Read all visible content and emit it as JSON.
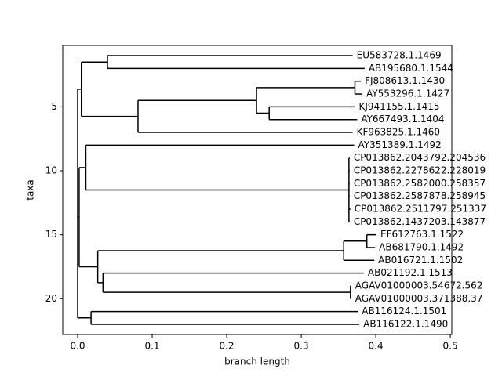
{
  "chart_data": {
    "type": "tree",
    "xlabel": "branch length",
    "ylabel": "taxa",
    "xlim": [
      -0.02,
      0.502
    ],
    "xticks": [
      {
        "value": 0,
        "label": "0.0"
      },
      0.1,
      0.2,
      0.3,
      0.4,
      0.5
    ],
    "ylim": [
      22.8,
      0.2
    ],
    "yticks": [
      5,
      10,
      15,
      20
    ],
    "color": "#000000",
    "tree": {
      "x": 0,
      "children": [
        {
          "x": 0.005,
          "children": [
            {
              "x": 0.04,
              "children": [
                {
                  "x": 0.369,
                  "name": "EU583728.1.1469"
                },
                {
                  "x": 0.385,
                  "name": "AB195680.1.1544"
                }
              ]
            },
            {
              "x": 0.081,
              "children": [
                {
                  "x": 0.24,
                  "children": [
                    {
                      "x": 0.372,
                      "children": [
                        {
                          "x": 0.38,
                          "name": "FJ808613.1.1430"
                        },
                        {
                          "x": 0.382,
                          "name": "AY553296.1.1427"
                        }
                      ]
                    },
                    {
                      "x": 0.257,
                      "children": [
                        {
                          "x": 0.372,
                          "name": "KJ941155.1.1415"
                        },
                        {
                          "x": 0.375,
                          "name": "AY667493.1.1404"
                        }
                      ]
                    }
                  ]
                },
                {
                  "x": 0.369,
                  "name": "KF963825.1.1460"
                }
              ]
            }
          ]
        },
        {
          "x": 0.002,
          "children": [
            {
              "x": 0.011,
              "children": [
                {
                  "x": 0.371,
                  "name": "AY351389.1.1492"
                },
                {
                  "x": 0.364,
                  "children": [
                    {
                      "x": 0.365,
                      "name": "CP013862.2043792.204536"
                    },
                    {
                      "x": 0.365,
                      "name": "CP013862.2278622.228019"
                    },
                    {
                      "x": 0.365,
                      "name": "CP013862.2582000.258357"
                    },
                    {
                      "x": 0.365,
                      "name": "CP013862.2587878.258945"
                    },
                    {
                      "x": 0.366,
                      "name": "CP013862.2511797.251337"
                    },
                    {
                      "x": 0.365,
                      "name": "CP013862.1437203.143877"
                    }
                  ]
                }
              ]
            },
            {
              "x": 0.027,
              "children": [
                {
                  "x": 0.357,
                  "children": [
                    {
                      "x": 0.388,
                      "children": [
                        {
                          "x": 0.401,
                          "name": "EF612763.1.1522"
                        },
                        {
                          "x": 0.399,
                          "name": "AB681790.1.1492"
                        }
                      ]
                    },
                    {
                      "x": 0.398,
                      "name": "AB016721.1.1502"
                    }
                  ]
                },
                {
                  "x": 0.034,
                  "children": [
                    {
                      "x": 0.384,
                      "name": "AB021192.1.1513"
                    },
                    {
                      "x": 0.366,
                      "children": [
                        {
                          "x": 0.367,
                          "name": "AGAV01000003.54672.562"
                        },
                        {
                          "x": 0.367,
                          "name": "AGAV01000003.371388.37"
                        }
                      ]
                    }
                  ]
                }
              ]
            }
          ]
        },
        {
          "x": 0.018,
          "children": [
            {
              "x": 0.376,
              "name": "AB116124.1.1501"
            },
            {
              "x": 0.378,
              "name": "AB116122.1.1490"
            }
          ]
        }
      ]
    }
  }
}
